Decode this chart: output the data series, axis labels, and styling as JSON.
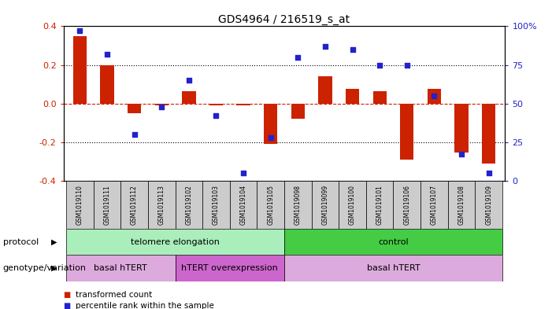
{
  "title": "GDS4964 / 216519_s_at",
  "samples": [
    "GSM1019110",
    "GSM1019111",
    "GSM1019112",
    "GSM1019113",
    "GSM1019102",
    "GSM1019103",
    "GSM1019104",
    "GSM1019105",
    "GSM1019098",
    "GSM1019099",
    "GSM1019100",
    "GSM1019101",
    "GSM1019106",
    "GSM1019107",
    "GSM1019108",
    "GSM1019109"
  ],
  "bar_values": [
    0.35,
    0.2,
    -0.05,
    -0.01,
    0.065,
    -0.008,
    -0.008,
    -0.21,
    -0.08,
    0.14,
    0.075,
    0.065,
    -0.29,
    0.075,
    -0.255,
    -0.31
  ],
  "dot_percentile": [
    97,
    82,
    30,
    48,
    65,
    42,
    5,
    28,
    80,
    87,
    85,
    75,
    75,
    55,
    17,
    5
  ],
  "ylim_left": [
    -0.4,
    0.4
  ],
  "ylim_right": [
    0,
    100
  ],
  "yticks_left": [
    -0.4,
    -0.2,
    0.0,
    0.2,
    0.4
  ],
  "yticks_right": [
    0,
    25,
    50,
    75,
    100
  ],
  "right_yticklabels": [
    "0",
    "25",
    "50",
    "75",
    "100%"
  ],
  "hline_dotted": [
    0.2,
    -0.2
  ],
  "bar_color": "#cc2200",
  "dot_color": "#2222cc",
  "bar_width": 0.5,
  "protocol_groups": [
    {
      "label": "telomere elongation",
      "start": 0,
      "end": 7,
      "color": "#aaeebb"
    },
    {
      "label": "control",
      "start": 8,
      "end": 15,
      "color": "#44cc44"
    }
  ],
  "genotype_groups": [
    {
      "label": "basal hTERT",
      "start": 0,
      "end": 3,
      "color": "#ddaadd"
    },
    {
      "label": "hTERT overexpression",
      "start": 4,
      "end": 7,
      "color": "#cc66cc"
    },
    {
      "label": "basal hTERT",
      "start": 8,
      "end": 15,
      "color": "#ddaadd"
    }
  ],
  "legend_items": [
    {
      "label": "transformed count",
      "color": "#cc2200"
    },
    {
      "label": "percentile rank within the sample",
      "color": "#2222cc"
    }
  ],
  "protocol_label": "protocol",
  "genotype_label": "genotype/variation",
  "background_color": "#ffffff",
  "tick_bg_color": "#cccccc",
  "axis_left_color": "#cc2200",
  "axis_right_color": "#2222cc"
}
